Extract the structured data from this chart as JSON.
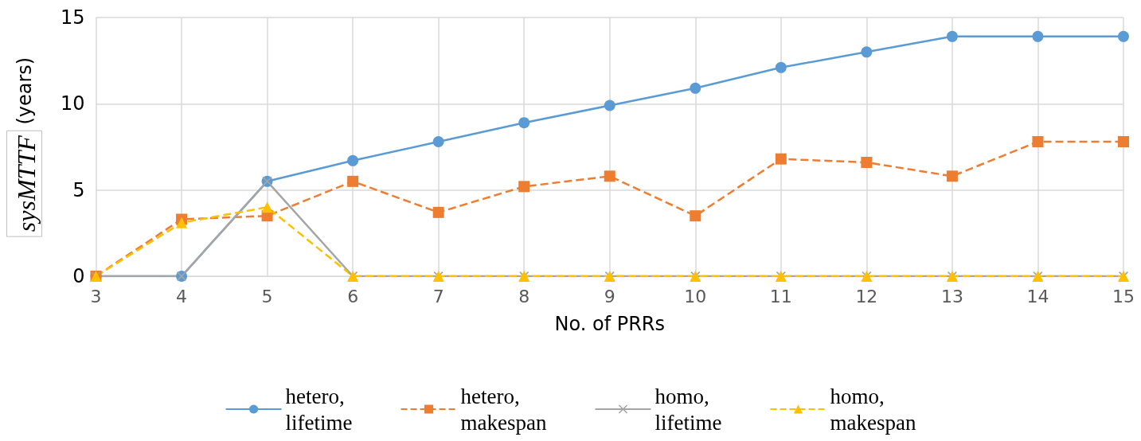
{
  "chart_data": {
    "type": "line",
    "xlabel": "No. of PRRs",
    "ylabel": "sysMTTF (years)",
    "categories": [
      "3",
      "4",
      "5",
      "6",
      "7",
      "8",
      "9",
      "10",
      "11",
      "12",
      "13",
      "14",
      "15"
    ],
    "ylim": [
      0,
      15
    ],
    "yticks": [
      0,
      5,
      10,
      15
    ],
    "grid": true,
    "legend": "bottom",
    "series": [
      {
        "name": "hetero,\nlifetime",
        "color": "#5b9bd5",
        "marker": "circle",
        "line_style": "solid",
        "values": [
          0,
          0,
          5.5,
          6.7,
          7.8,
          8.9,
          9.9,
          10.9,
          12.1,
          13.0,
          13.9,
          13.9,
          13.9
        ]
      },
      {
        "name": "hetero,\nmakespan",
        "color": "#ed7d31",
        "marker": "square",
        "line_style": "dashed",
        "values": [
          0,
          3.3,
          3.5,
          5.5,
          3.7,
          5.2,
          5.8,
          3.5,
          6.8,
          6.6,
          5.8,
          7.8,
          7.8
        ]
      },
      {
        "name": "homo,\nlifetime",
        "color": "#a5a5a5",
        "marker": "cross",
        "line_style": "solid",
        "values": [
          0,
          0,
          5.5,
          0,
          0,
          0,
          0,
          0,
          0,
          0,
          0,
          0,
          0
        ]
      },
      {
        "name": "homo,\nmakespan",
        "color": "#ffc000",
        "marker": "triangle",
        "line_style": "dashed",
        "values": [
          0,
          3.1,
          4.0,
          0,
          0,
          0,
          0,
          0,
          0,
          0,
          0,
          0,
          0
        ]
      }
    ]
  }
}
